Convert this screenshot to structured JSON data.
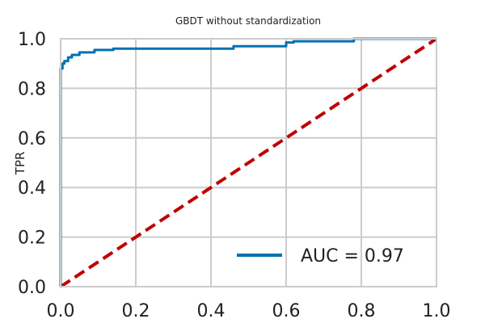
{
  "chart_data": {
    "type": "line",
    "title": "GBDT without standardization",
    "xlabel": "",
    "ylabel": "TPR",
    "xlim": [
      0,
      1
    ],
    "ylim": [
      0,
      1
    ],
    "xticks": [
      "0.0",
      "0.2",
      "0.4",
      "0.6",
      "0.8",
      "1.0"
    ],
    "yticks": [
      "0.0",
      "0.2",
      "0.4",
      "0.6",
      "0.8",
      "1.0"
    ],
    "grid": true,
    "legend_position": "bottom-right",
    "series": [
      {
        "name": "AUC = 0.97",
        "color": "#0072b2",
        "style": "solid",
        "x": [
          0.0,
          0.0,
          0.005,
          0.005,
          0.01,
          0.01,
          0.02,
          0.02,
          0.03,
          0.03,
          0.05,
          0.05,
          0.09,
          0.09,
          0.14,
          0.14,
          0.46,
          0.46,
          0.6,
          0.6,
          0.62,
          0.62,
          0.78,
          0.78,
          1.0
        ],
        "y": [
          0.0,
          0.88,
          0.88,
          0.9,
          0.9,
          0.91,
          0.91,
          0.925,
          0.925,
          0.935,
          0.935,
          0.945,
          0.945,
          0.955,
          0.955,
          0.96,
          0.96,
          0.97,
          0.97,
          0.985,
          0.985,
          0.99,
          0.99,
          1.0,
          1.0
        ]
      },
      {
        "name": "",
        "color": "#c00000",
        "style": "dashed",
        "x": [
          0.0,
          1.0
        ],
        "y": [
          0.0,
          1.0
        ]
      }
    ]
  }
}
